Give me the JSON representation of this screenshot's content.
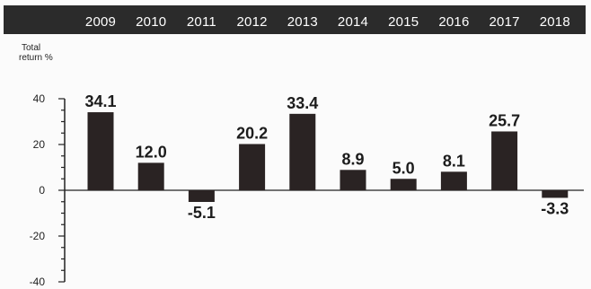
{
  "chart_data": {
    "type": "bar",
    "title": "",
    "xlabel": "",
    "ylabel_lines": [
      "Total",
      "return %"
    ],
    "categories": [
      "2009",
      "2010",
      "2011",
      "2012",
      "2013",
      "2014",
      "2015",
      "2016",
      "2017",
      "2018"
    ],
    "values": [
      34.1,
      12.0,
      -5.1,
      20.2,
      33.4,
      8.9,
      5.0,
      8.1,
      25.7,
      -3.3
    ],
    "value_labels": [
      "34.1",
      "12.0",
      "-5.1",
      "20.2",
      "33.4",
      "8.9",
      "5.0",
      "8.1",
      "25.7",
      "-3.3"
    ],
    "ylim": [
      -40,
      40
    ],
    "y_ticks": [
      40,
      20,
      0,
      -20,
      -40
    ],
    "y_tick_labels": [
      "40",
      "20",
      "0",
      "-20",
      "-40"
    ],
    "grid": false,
    "legend": "none",
    "bar_color": "#2a2323",
    "axis_color": "#222222",
    "band_color": "#2b2b2b"
  }
}
